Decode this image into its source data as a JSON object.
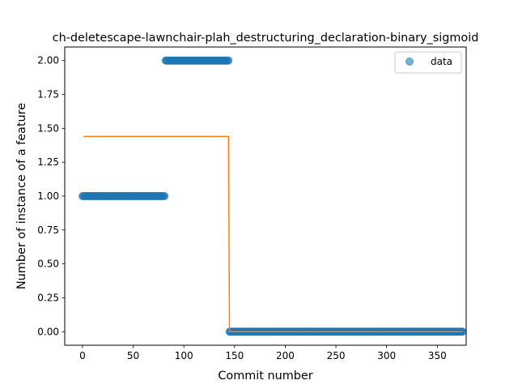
{
  "chart_data": {
    "type": "scatter",
    "title": "ch-deletescape-lawnchair-plah_destructuring_declaration-binary_sigmoid",
    "xlabel": "Commit number",
    "ylabel": "Number of instance of a feature",
    "xlim": [
      -17.5,
      378.5
    ],
    "ylim": [
      -0.1,
      2.1
    ],
    "xticks": [
      0,
      50,
      100,
      150,
      200,
      250,
      300,
      350
    ],
    "xtick_labels": [
      "0",
      "50",
      "100",
      "150",
      "200",
      "250",
      "300",
      "350"
    ],
    "yticks": [
      0.0,
      0.25,
      0.5,
      0.75,
      1.0,
      1.25,
      1.5,
      1.75,
      2.0
    ],
    "ytick_labels": [
      "0.00",
      "0.25",
      "0.50",
      "0.75",
      "1.00",
      "1.25",
      "1.50",
      "1.75",
      "2.00"
    ],
    "grid": false,
    "legend_position": "top-right",
    "series": [
      {
        "name": "data",
        "kind": "scatter",
        "color": "#1f77b4",
        "segments": [
          {
            "x_start": 0,
            "x_end": 81,
            "y": 1.0
          },
          {
            "x_start": 82,
            "x_end": 144,
            "y": 2.0
          },
          {
            "x_start": 145,
            "x_end": 375,
            "y": 0.0
          }
        ]
      },
      {
        "kind": "line",
        "color": "#ff7f0e",
        "x": [
          1,
          144,
          145,
          375
        ],
        "y": [
          1.44,
          1.44,
          0.0,
          0.0
        ]
      }
    ]
  }
}
